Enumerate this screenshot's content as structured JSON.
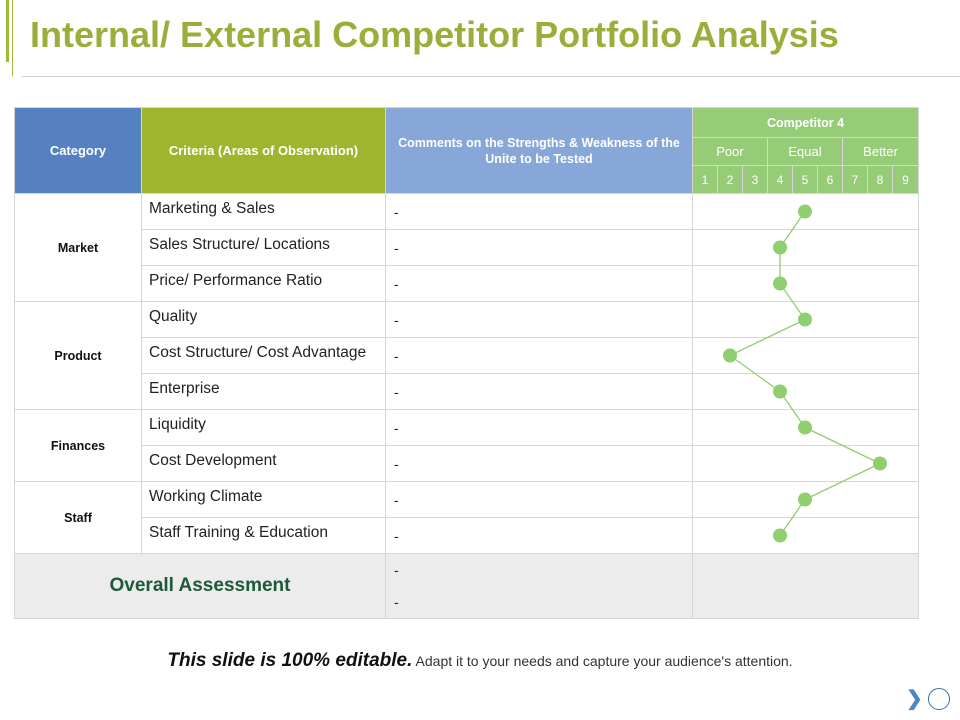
{
  "page": {
    "title": "Internal/ External Competitor Portfolio Analysis"
  },
  "table": {
    "headers": {
      "category": "Category",
      "criteria": "Criteria (Areas of Observation)",
      "comments": "Comments on the Strengths & Weakness of the Unite to be Tested",
      "competitor": "Competitor 4",
      "scale_groups": [
        "Poor",
        "Equal",
        "Better"
      ],
      "scale_numbers": [
        "1",
        "2",
        "3",
        "4",
        "5",
        "6",
        "7",
        "8",
        "9"
      ]
    },
    "categories": [
      "Market",
      "Product",
      "Finances",
      "Staff"
    ],
    "rows": [
      {
        "criteria": "Marketing & Sales",
        "comment": "-",
        "rating": 5
      },
      {
        "criteria": "Sales Structure/ Locations",
        "comment": "-",
        "rating": 4
      },
      {
        "criteria": "Price/ Performance Ratio",
        "comment": "-",
        "rating": 4
      },
      {
        "criteria": "Quality",
        "comment": "-",
        "rating": 5
      },
      {
        "criteria": "Cost Structure/ Cost Advantage",
        "comment": "-",
        "rating": 2
      },
      {
        "criteria": "Enterprise",
        "comment": "-",
        "rating": 4
      },
      {
        "criteria": "Liquidity",
        "comment": "-",
        "rating": 5
      },
      {
        "criteria": "Cost Development",
        "comment": "-",
        "rating": 8
      },
      {
        "criteria": "Working Climate",
        "comment": "-",
        "rating": 5
      },
      {
        "criteria": "Staff Training & Education",
        "comment": "-",
        "rating": 4
      }
    ],
    "overall": {
      "label": "Overall Assessment",
      "comments": [
        "-",
        "-"
      ]
    },
    "rating_color": "#8fcf6f"
  },
  "footer": {
    "strong": "This slide is 100% editable.",
    "rest": "Adapt it to your needs and capture your audience's attention."
  }
}
